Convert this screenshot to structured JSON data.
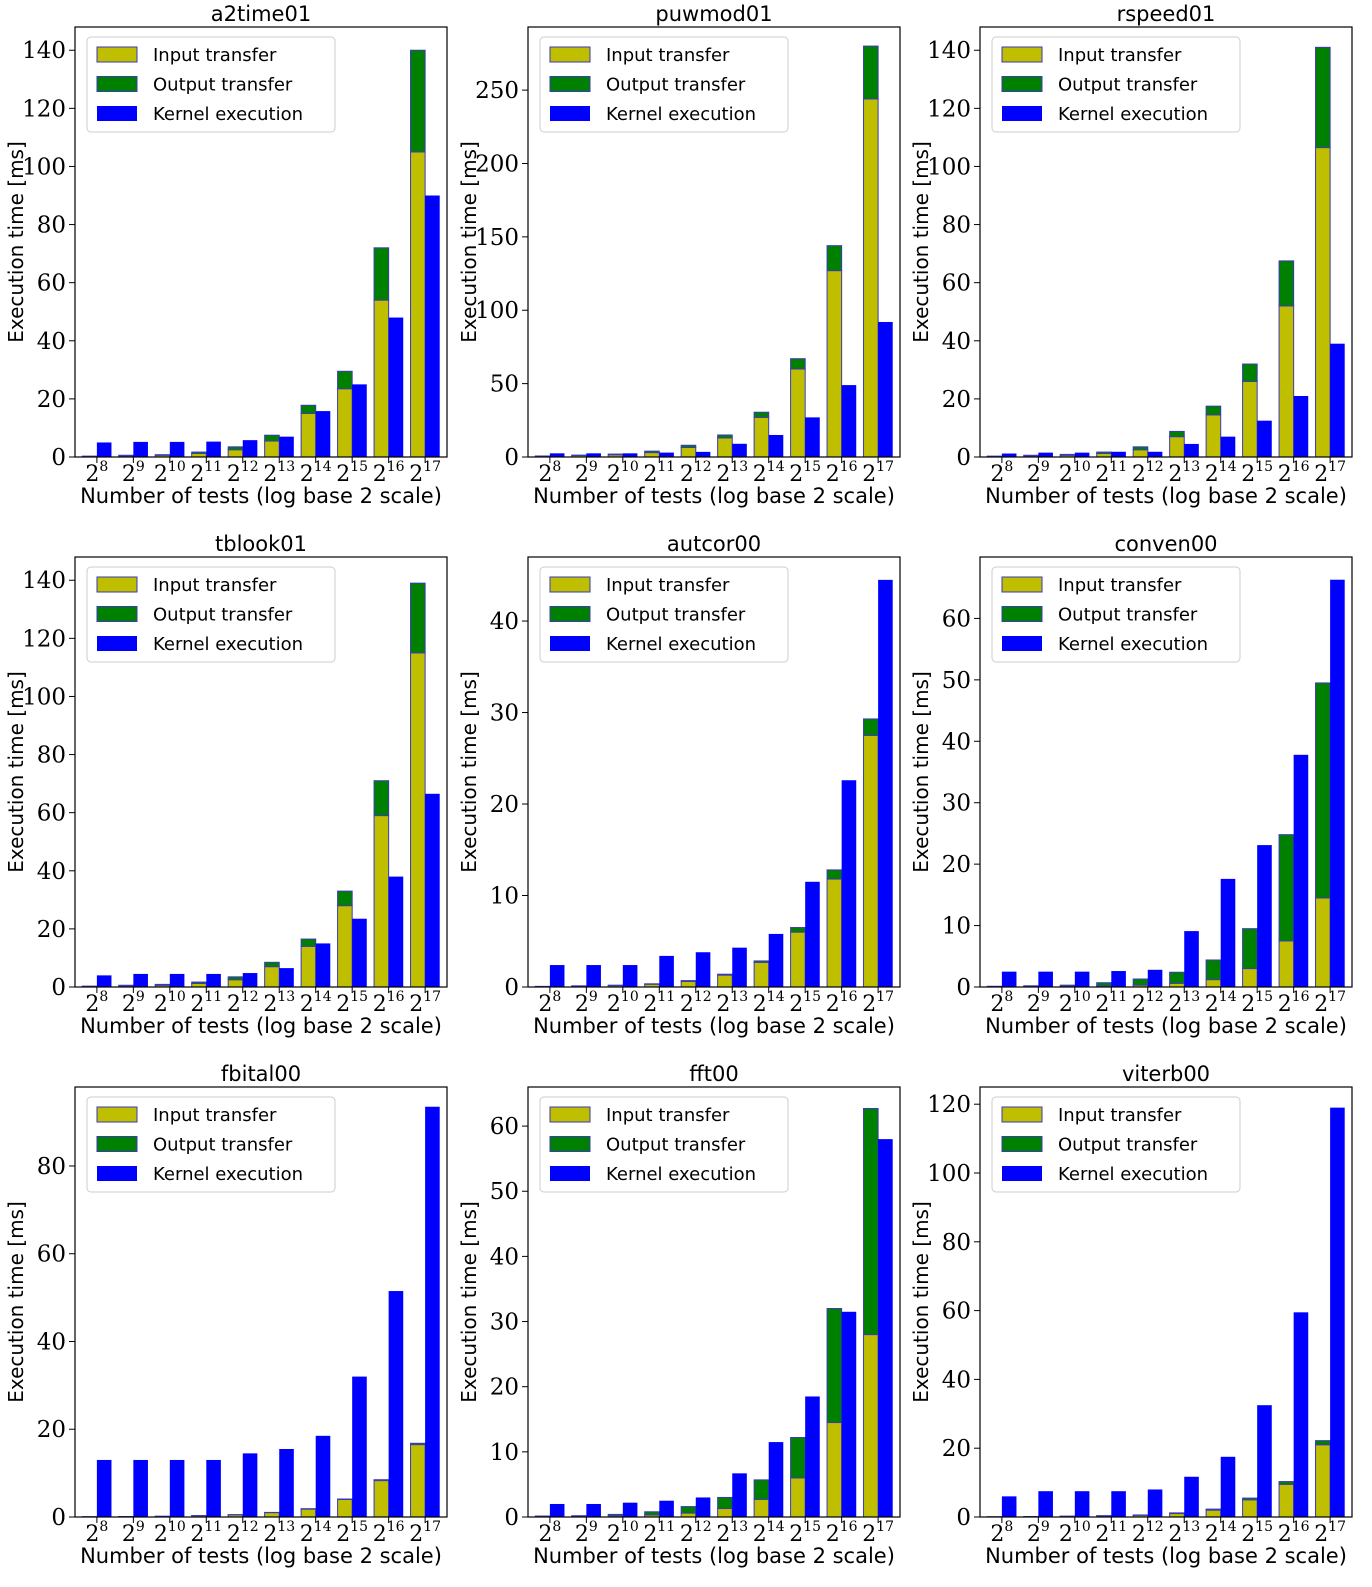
{
  "chart_data": [
    {
      "type": "bar",
      "title": "a2time01",
      "xlabel": "Number of tests (log base 2 scale)",
      "ylabel": "Execution time [ms]",
      "categories": [
        "2^8",
        "2^9",
        "2^10",
        "2^11",
        "2^12",
        "2^13",
        "2^14",
        "2^15",
        "2^16",
        "2^17"
      ],
      "ylim": [
        0,
        148
      ],
      "yticks": [
        0,
        20,
        40,
        60,
        80,
        100,
        120,
        140
      ],
      "legend": "top-left",
      "series": [
        {
          "name": "Input transfer",
          "values": [
            0.2,
            0.4,
            0.6,
            1.2,
            2.5,
            5.5,
            15,
            23.5,
            54,
            105
          ]
        },
        {
          "name": "Output transfer",
          "values": [
            0.1,
            0.2,
            0.2,
            0.5,
            1,
            2,
            2.8,
            6,
            18,
            35
          ]
        },
        {
          "name": "Kernel execution",
          "values": [
            5,
            5.2,
            5.2,
            5.3,
            5.8,
            7,
            15.8,
            25,
            48,
            90
          ]
        }
      ]
    },
    {
      "type": "bar",
      "title": "puwmod01",
      "xlabel": "Number of tests (log base 2 scale)",
      "ylabel": "Execution time [ms]",
      "categories": [
        "2^8",
        "2^9",
        "2^10",
        "2^11",
        "2^12",
        "2^13",
        "2^14",
        "2^15",
        "2^16",
        "2^17"
      ],
      "ylim": [
        0,
        293
      ],
      "yticks": [
        0,
        50,
        100,
        150,
        200,
        250
      ],
      "legend": "top-left",
      "series": [
        {
          "name": "Input transfer",
          "values": [
            0.5,
            1,
            1.5,
            3,
            6.5,
            13,
            27,
            60,
            127,
            244
          ]
        },
        {
          "name": "Output transfer",
          "values": [
            0.2,
            0.3,
            0.5,
            1,
            1.5,
            2,
            3.5,
            7,
            17,
            36
          ]
        },
        {
          "name": "Kernel execution",
          "values": [
            2.5,
            2.5,
            2.5,
            3,
            3.5,
            9,
            15,
            27,
            49,
            92
          ]
        }
      ]
    },
    {
      "type": "bar",
      "title": "rspeed01",
      "xlabel": "Number of tests (log base 2 scale)",
      "ylabel": "Execution time [ms]",
      "categories": [
        "2^8",
        "2^9",
        "2^10",
        "2^11",
        "2^12",
        "2^13",
        "2^14",
        "2^15",
        "2^16",
        "2^17"
      ],
      "ylim": [
        0,
        148
      ],
      "yticks": [
        0,
        20,
        40,
        60,
        80,
        100,
        120,
        140
      ],
      "legend": "top-left",
      "series": [
        {
          "name": "Input transfer",
          "values": [
            0.2,
            0.4,
            0.6,
            1.2,
            2.5,
            7,
            14.5,
            26,
            52,
            106.5
          ]
        },
        {
          "name": "Output transfer",
          "values": [
            0.1,
            0.2,
            0.3,
            0.5,
            1,
            1.8,
            3,
            6,
            15.5,
            34.5
          ]
        },
        {
          "name": "Kernel execution",
          "values": [
            1.2,
            1.5,
            1.5,
            1.8,
            1.8,
            4.5,
            7,
            12.5,
            21,
            39
          ]
        }
      ]
    },
    {
      "type": "bar",
      "title": "tblook01",
      "xlabel": "Number of tests (log base 2 scale)",
      "ylabel": "Execution time [ms]",
      "categories": [
        "2^8",
        "2^9",
        "2^10",
        "2^11",
        "2^12",
        "2^13",
        "2^14",
        "2^15",
        "2^16",
        "2^17"
      ],
      "ylim": [
        0,
        148
      ],
      "yticks": [
        0,
        20,
        40,
        60,
        80,
        100,
        120,
        140
      ],
      "legend": "top-left",
      "series": [
        {
          "name": "Input transfer",
          "values": [
            0.2,
            0.4,
            0.6,
            1.2,
            2.5,
            7,
            14,
            28,
            59,
            115
          ]
        },
        {
          "name": "Output transfer",
          "values": [
            0.1,
            0.2,
            0.3,
            0.5,
            1,
            1.5,
            2.5,
            5,
            12,
            24
          ]
        },
        {
          "name": "Kernel execution",
          "values": [
            4,
            4.5,
            4.5,
            4.5,
            4.8,
            6.5,
            15,
            23.5,
            38,
            66.5
          ]
        }
      ]
    },
    {
      "type": "bar",
      "title": "autcor00",
      "xlabel": "Number of tests (log base 2 scale)",
      "ylabel": "Execution time [ms]",
      "categories": [
        "2^8",
        "2^9",
        "2^10",
        "2^11",
        "2^12",
        "2^13",
        "2^14",
        "2^15",
        "2^16",
        "2^17"
      ],
      "ylim": [
        0,
        47
      ],
      "yticks": [
        0,
        10,
        20,
        30,
        40
      ],
      "legend": "top-left",
      "series": [
        {
          "name": "Input transfer",
          "values": [
            0.05,
            0.1,
            0.15,
            0.3,
            0.6,
            1.3,
            2.7,
            6,
            11.8,
            27.5
          ]
        },
        {
          "name": "Output transfer",
          "values": [
            0.02,
            0.03,
            0.05,
            0.05,
            0.1,
            0.1,
            0.15,
            0.5,
            1,
            1.8
          ]
        },
        {
          "name": "Kernel execution",
          "values": [
            2.4,
            2.4,
            2.4,
            3.4,
            3.8,
            4.3,
            5.8,
            11.5,
            22.6,
            44.5
          ]
        }
      ]
    },
    {
      "type": "bar",
      "title": "conven00",
      "xlabel": "Number of tests (log base 2 scale)",
      "ylabel": "Execution time [ms]",
      "categories": [
        "2^8",
        "2^9",
        "2^10",
        "2^11",
        "2^12",
        "2^13",
        "2^14",
        "2^15",
        "2^16",
        "2^17"
      ],
      "ylim": [
        0,
        70
      ],
      "yticks": [
        0,
        10,
        20,
        30,
        40,
        50,
        60
      ],
      "legend": "top-left",
      "series": [
        {
          "name": "Input transfer",
          "values": [
            0.02,
            0.05,
            0.1,
            0.2,
            0.3,
            0.6,
            1.2,
            3,
            7.5,
            14.5
          ]
        },
        {
          "name": "Output transfer",
          "values": [
            0.1,
            0.15,
            0.2,
            0.5,
            1,
            1.8,
            3.2,
            6.5,
            17.3,
            35
          ]
        },
        {
          "name": "Kernel execution",
          "values": [
            2.5,
            2.5,
            2.5,
            2.6,
            2.8,
            9.1,
            17.6,
            23.1,
            37.8,
            66.3
          ]
        }
      ]
    },
    {
      "type": "bar",
      "title": "fbital00",
      "xlabel": "Number of tests (log base 2 scale)",
      "ylabel": "Execution time [ms]",
      "categories": [
        "2^8",
        "2^9",
        "2^10",
        "2^11",
        "2^12",
        "2^13",
        "2^14",
        "2^15",
        "2^16",
        "2^17"
      ],
      "ylim": [
        0,
        98
      ],
      "yticks": [
        0,
        20,
        40,
        60,
        80
      ],
      "legend": "top-left",
      "series": [
        {
          "name": "Input transfer",
          "values": [
            0.05,
            0.1,
            0.15,
            0.3,
            0.5,
            1,
            1.8,
            4,
            8.3,
            16.5
          ]
        },
        {
          "name": "Output transfer",
          "values": [
            0.01,
            0.01,
            0.02,
            0.03,
            0.05,
            0.05,
            0.1,
            0.1,
            0.2,
            0.3
          ]
        },
        {
          "name": "Kernel execution",
          "values": [
            13,
            13,
            13,
            13,
            14.5,
            15.5,
            18.5,
            32,
            51.5,
            93.5
          ]
        }
      ]
    },
    {
      "type": "bar",
      "title": "fft00",
      "xlabel": "Number of tests (log base 2 scale)",
      "ylabel": "Execution time [ms]",
      "categories": [
        "2^8",
        "2^9",
        "2^10",
        "2^11",
        "2^12",
        "2^13",
        "2^14",
        "2^15",
        "2^16",
        "2^17"
      ],
      "ylim": [
        0,
        66
      ],
      "yticks": [
        0,
        10,
        20,
        30,
        40,
        50,
        60
      ],
      "legend": "top-left",
      "series": [
        {
          "name": "Input transfer",
          "values": [
            0.05,
            0.1,
            0.2,
            0.3,
            0.6,
            1.3,
            2.7,
            6,
            14.5,
            28
          ]
        },
        {
          "name": "Output transfer",
          "values": [
            0.1,
            0.1,
            0.2,
            0.5,
            1,
            1.7,
            3,
            6.2,
            17.5,
            34.7
          ]
        },
        {
          "name": "Kernel execution",
          "values": [
            2,
            2,
            2.2,
            2.5,
            3,
            6.7,
            11.5,
            18.5,
            31.5,
            58
          ]
        }
      ]
    },
    {
      "type": "bar",
      "title": "viterb00",
      "xlabel": "Number of tests (log base 2 scale)",
      "ylabel": "Execution time [ms]",
      "categories": [
        "2^8",
        "2^9",
        "2^10",
        "2^11",
        "2^12",
        "2^13",
        "2^14",
        "2^15",
        "2^16",
        "2^17"
      ],
      "ylim": [
        0,
        125
      ],
      "yticks": [
        0,
        20,
        40,
        60,
        80,
        100,
        120
      ],
      "legend": "top-left",
      "series": [
        {
          "name": "Input transfer",
          "values": [
            0.05,
            0.1,
            0.2,
            0.3,
            0.5,
            1,
            2,
            5,
            9.5,
            21
          ]
        },
        {
          "name": "Output transfer",
          "values": [
            0.02,
            0.03,
            0.05,
            0.1,
            0.1,
            0.2,
            0.3,
            0.5,
            0.8,
            1.2
          ]
        },
        {
          "name": "Kernel execution",
          "values": [
            6,
            7.5,
            7.5,
            7.5,
            8,
            11.7,
            17.5,
            32.5,
            59.5,
            119
          ]
        }
      ]
    }
  ],
  "colors": {
    "input": "#bfbf00",
    "output": "#008000",
    "kernel": "#0000ff",
    "bar_edge": "#3a3ab8"
  }
}
